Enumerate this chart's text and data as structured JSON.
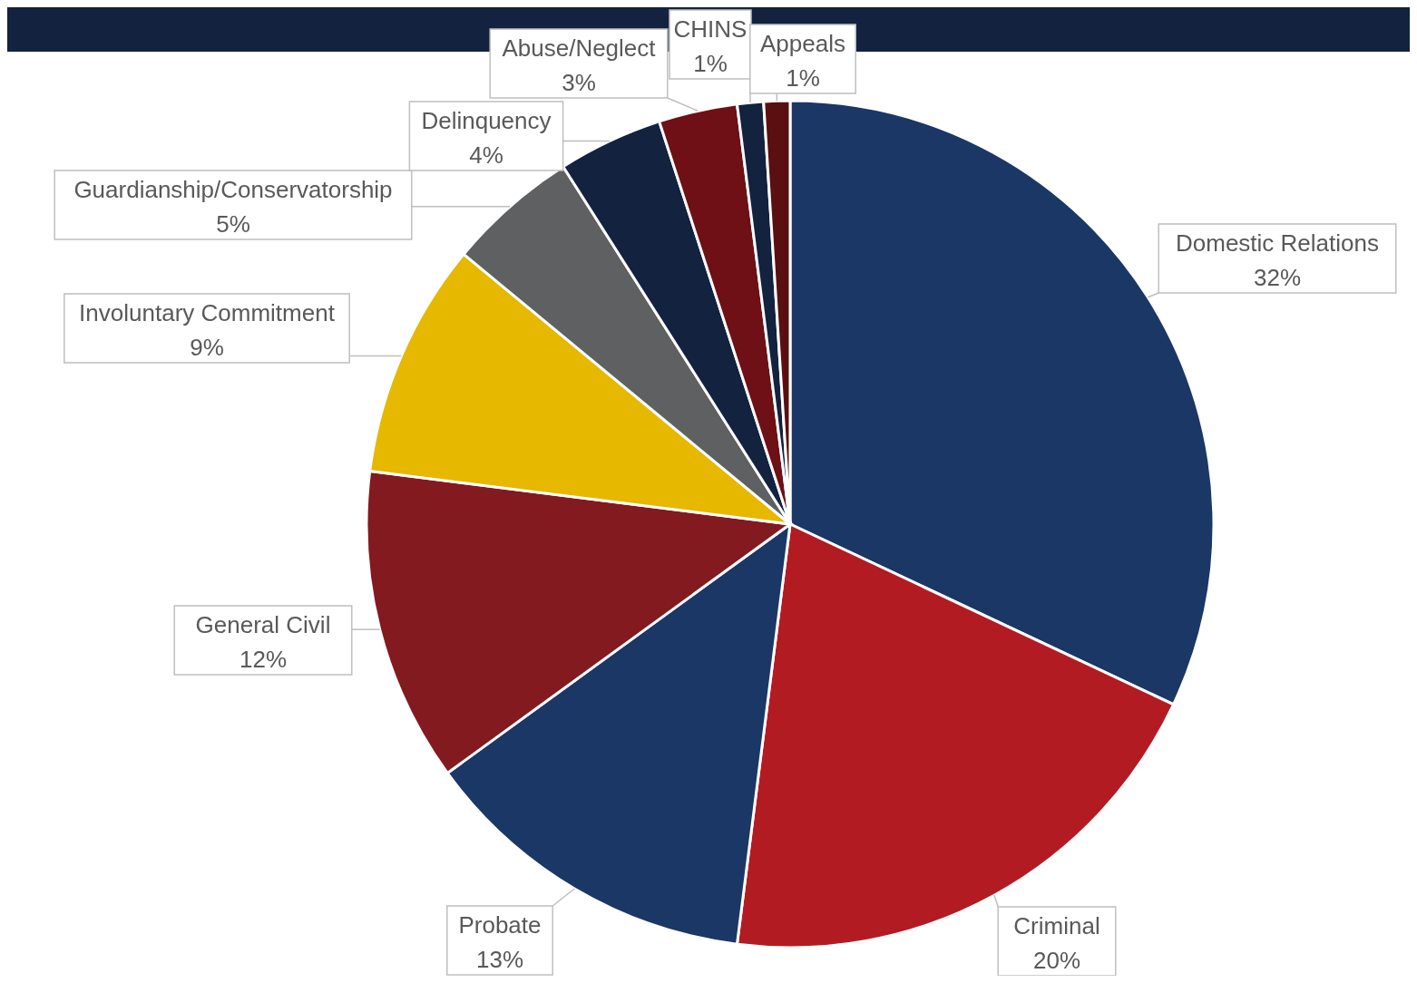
{
  "chart_data": {
    "type": "pie",
    "categories": [
      "Domestic Relations",
      "Criminal",
      "Probate",
      "General Civil",
      "Involuntary Commitment",
      "Guardianship/Conservatorship",
      "Delinquency",
      "Abuse/Neglect",
      "CHINS",
      "Appeals"
    ],
    "values": [
      32,
      20,
      13,
      12,
      9,
      5,
      4,
      3,
      1,
      1
    ],
    "value_labels": [
      "32%",
      "20%",
      "13%",
      "12%",
      "9%",
      "5%",
      "4%",
      "3%",
      "1%",
      "1%"
    ],
    "colors": [
      "#1b3766",
      "#b31b23",
      "#1b3766",
      "#821a1f",
      "#e6b800",
      "#5f6062",
      "#12223f",
      "#6e1016",
      "#12223f",
      "#5a1010"
    ],
    "legend": false
  }
}
